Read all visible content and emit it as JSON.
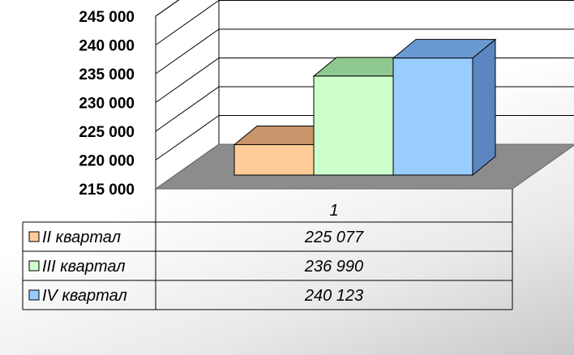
{
  "chart_data": {
    "type": "bar",
    "categories": [
      "1"
    ],
    "series": [
      {
        "name": "II квартал",
        "values": [
          225077
        ],
        "value_label": "225 077",
        "color": "#FFCC99",
        "top_color": "#C8946A",
        "side_color": "#B98458"
      },
      {
        "name": "III квартал",
        "values": [
          236990
        ],
        "value_label": "236 990",
        "color": "#CCFFCC",
        "top_color": "#8FC98F",
        "side_color": "#7DB77D"
      },
      {
        "name": "IV квартал",
        "values": [
          240123
        ],
        "value_label": "240 123",
        "color": "#99CCFF",
        "top_color": "#6A9AD2",
        "side_color": "#5B86C0"
      }
    ],
    "ylim": [
      215000,
      245000
    ],
    "yticks": [
      215000,
      220000,
      225000,
      230000,
      235000,
      240000,
      245000
    ],
    "ytick_labels": [
      "215 000",
      "220 000",
      "225 000",
      "230 000",
      "235 000",
      "240 000",
      "245 000"
    ],
    "grid": true,
    "legend": "data-table",
    "style": "3d-column"
  }
}
